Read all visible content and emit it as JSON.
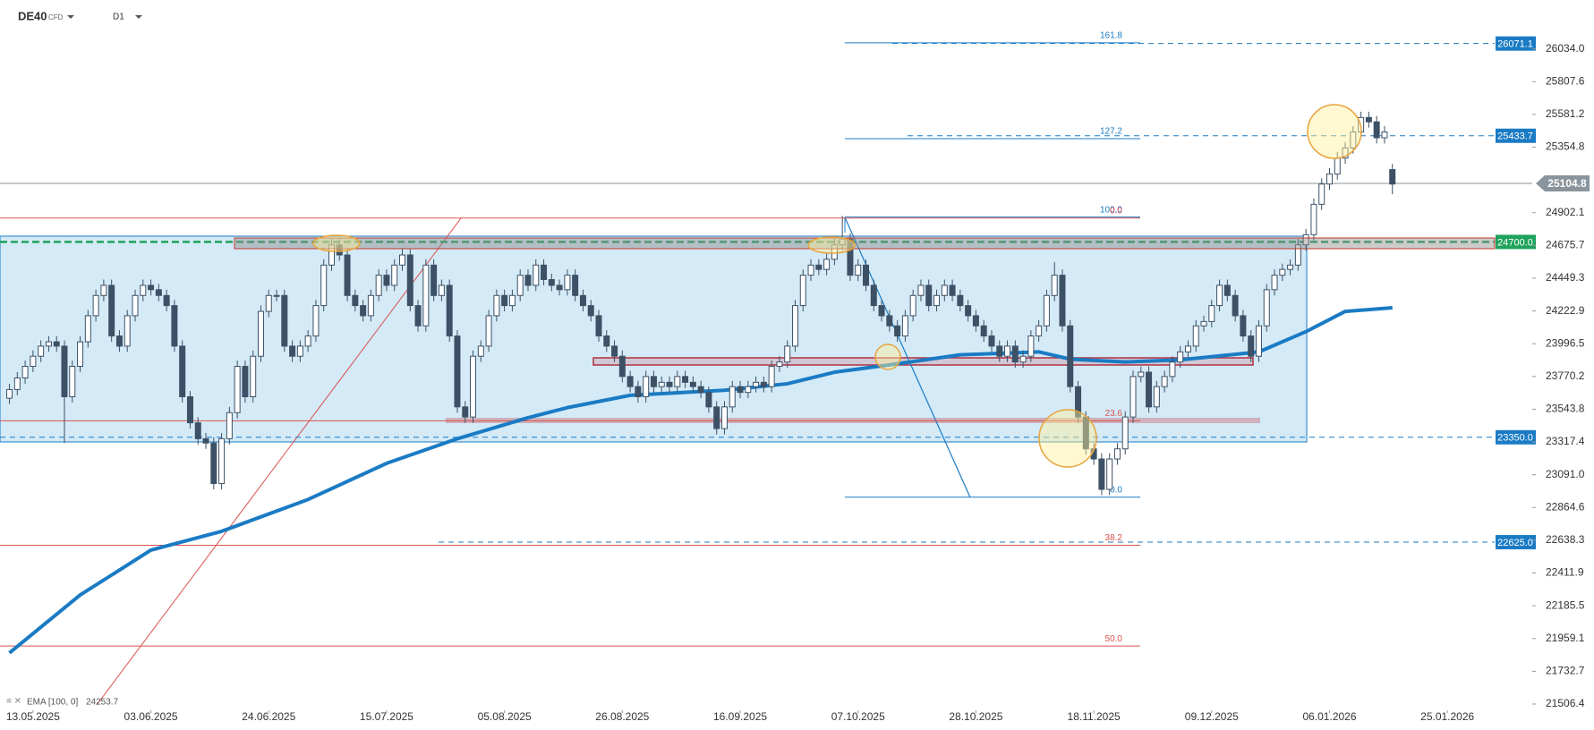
{
  "chart_data": {
    "type": "candlestick",
    "symbol": "DE40",
    "instrument": "CFD",
    "interval": "D1",
    "xlim": [
      -1.2,
      193.8
    ],
    "ylim": [
      21463,
      26372
    ],
    "xticks": [
      {
        "value": 3,
        "label": "13.05.2025"
      },
      {
        "value": 18,
        "label": "03.06.2025"
      },
      {
        "value": 33,
        "label": "24.06.2025"
      },
      {
        "value": 48,
        "label": "15.07.2025"
      },
      {
        "value": 63,
        "label": "05.08.2025"
      },
      {
        "value": 78,
        "label": "26.08.2025"
      },
      {
        "value": 93,
        "label": "16.09.2025"
      },
      {
        "value": 108,
        "label": "07.10.2025"
      },
      {
        "value": 123,
        "label": "28.10.2025"
      },
      {
        "value": 138,
        "label": "18.11.2025"
      },
      {
        "value": 153,
        "label": "09.12.2025"
      },
      {
        "value": 168,
        "label": "06.01.2026"
      },
      {
        "value": 183,
        "label": "25.01.2026"
      }
    ],
    "yticks": [
      21506.4,
      21732.7,
      21959.1,
      22185.5,
      22411.9,
      22638.3,
      22864.6,
      {
        "value": 23091.0,
        "label": "23091.0"
      },
      23317.4,
      23543.8,
      23770.2,
      23996.5,
      24222.9,
      24449.3,
      24675.7,
      24902.1,
      25354.8,
      25581.2,
      25807.6,
      {
        "value": 26034.0,
        "label": "26034.0"
      }
    ],
    "up_color": "#ffffff",
    "down_color": "#3d5166",
    "x": [
      0,
      1,
      2,
      3,
      4,
      5,
      6,
      7,
      8,
      9,
      10,
      11,
      12,
      13,
      14,
      15,
      16,
      17,
      18,
      19,
      20,
      21,
      22,
      23,
      24,
      25,
      26,
      27,
      28,
      29,
      30,
      31,
      32,
      33,
      34,
      35,
      36,
      37,
      38,
      39,
      40,
      41,
      42,
      43,
      44,
      45,
      46,
      47,
      48,
      49,
      50,
      51,
      52,
      53,
      54,
      55,
      56,
      57,
      58,
      59,
      60,
      61,
      62,
      63,
      64,
      65,
      66,
      67,
      68,
      69,
      70,
      71,
      72,
      73,
      74,
      75,
      76,
      77,
      78,
      79,
      80,
      81,
      82,
      83,
      84,
      85,
      86,
      87,
      88,
      89,
      90,
      91,
      92,
      93,
      94,
      95,
      96,
      97,
      98,
      99,
      100,
      101,
      102,
      103,
      104,
      105,
      106,
      107,
      108,
      109,
      110,
      111,
      112,
      113,
      114,
      115,
      116,
      117,
      118,
      119,
      120,
      121,
      122,
      123,
      124,
      125,
      126,
      127,
      128,
      129,
      130,
      131,
      132,
      133,
      134,
      135,
      136,
      137,
      138,
      139,
      140,
      141,
      142,
      143,
      144,
      145,
      146,
      147,
      148,
      149,
      150,
      151,
      152,
      153,
      154,
      155,
      156,
      157,
      158,
      159,
      160,
      161,
      162,
      163,
      164,
      165,
      166,
      167,
      168,
      169,
      170,
      171,
      172,
      173,
      174,
      175,
      176
    ],
    "open": [
      23620,
      23680,
      23760,
      23840,
      23910,
      23980,
      24010,
      23980,
      23630,
      23840,
      24010,
      24190,
      24330,
      24400,
      24050,
      23980,
      24190,
      24330,
      24400,
      24370,
      24330,
      24260,
      23980,
      23630,
      23450,
      23340,
      23310,
      23030,
      23340,
      23520,
      23840,
      23630,
      23910,
      24220,
      24330,
      24330,
      23980,
      23910,
      23980,
      24050,
      24260,
      24540,
      24680,
      24610,
      24330,
      24260,
      24190,
      24330,
      24470,
      24400,
      24540,
      24610,
      24260,
      24120,
      24540,
      24330,
      24400,
      24050,
      23560,
      23490,
      23910,
      23980,
      24190,
      24330,
      24260,
      24330,
      24470,
      24400,
      24540,
      24440,
      24400,
      24370,
      24470,
      24330,
      24260,
      24190,
      24050,
      23980,
      23910,
      23770,
      23700,
      23630,
      23770,
      23700,
      23730,
      23700,
      23770,
      23730,
      23700,
      23660,
      23560,
      23410,
      23560,
      23700,
      23660,
      23700,
      23730,
      23700,
      23840,
      23870,
      23980,
      24260,
      24470,
      24540,
      24510,
      24580,
      24680,
      24720,
      24470,
      24540,
      24400,
      24260,
      24190,
      24120,
      24050,
      24190,
      24330,
      24400,
      24260,
      24330,
      24400,
      24330,
      24260,
      24190,
      24120,
      24050,
      23980,
      23910,
      23980,
      23870,
      23910,
      24050,
      24120,
      24330,
      24470,
      24120,
      23700,
      23490,
      23270,
      23200,
      22990,
      23200,
      23270,
      23490,
      23770,
      23800,
      23560,
      23700,
      23770,
      23870,
      23940,
      23980,
      24120,
      24150,
      24260,
      24400,
      24330,
      24190,
      24050,
      23910,
      24120,
      24370,
      24470,
      24510,
      24540,
      24680,
      24750,
      24960,
      25100,
      25170,
      25280,
      25350,
      25460,
      25560,
      25530,
      25420,
      25200
    ],
    "high": [
      23720,
      23800,
      23880,
      23950,
      24020,
      24050,
      24050,
      24020,
      23880,
      24050,
      24230,
      24370,
      24440,
      24440,
      24090,
      24230,
      24370,
      24440,
      24440,
      24410,
      24370,
      24300,
      24020,
      23670,
      23490,
      23380,
      23350,
      23380,
      23560,
      23880,
      23880,
      23950,
      24260,
      24370,
      24370,
      24370,
      24020,
      24020,
      24090,
      24300,
      24580,
      24720,
      24720,
      24650,
      24370,
      24300,
      24370,
      24510,
      24510,
      24580,
      24650,
      24650,
      24300,
      24580,
      24580,
      24440,
      24440,
      24090,
      23600,
      23950,
      24020,
      24230,
      24370,
      24370,
      24370,
      24510,
      24510,
      24580,
      24580,
      24480,
      24440,
      24510,
      24510,
      24370,
      24300,
      24230,
      24090,
      24020,
      23950,
      23810,
      23740,
      23810,
      23810,
      23770,
      23770,
      23810,
      23810,
      23770,
      23740,
      23700,
      23600,
      23600,
      23740,
      23740,
      23740,
      23770,
      23770,
      23880,
      23910,
      24020,
      24300,
      24510,
      24580,
      24580,
      24620,
      24720,
      24880,
      24760,
      24580,
      24580,
      24440,
      24300,
      24230,
      24160,
      24230,
      24370,
      24440,
      24440,
      24370,
      24440,
      24440,
      24370,
      24300,
      24230,
      24160,
      24090,
      24020,
      24020,
      24020,
      23950,
      24090,
      24160,
      24370,
      24560,
      24510,
      24160,
      23740,
      23530,
      23310,
      23240,
      23240,
      23310,
      23530,
      23810,
      23840,
      23840,
      23740,
      23810,
      23910,
      23980,
      24020,
      24160,
      24190,
      24300,
      24440,
      24440,
      24370,
      24230,
      24090,
      24160,
      24410,
      24510,
      24550,
      24580,
      24720,
      24790,
      25000,
      25140,
      25210,
      25320,
      25390,
      25500,
      25600,
      25600,
      25570,
      25500,
      25240
    ],
    "low": [
      23580,
      23640,
      23720,
      23800,
      23870,
      23940,
      23940,
      23310,
      23590,
      23800,
      23970,
      24150,
      24290,
      24010,
      23940,
      23940,
      24150,
      24290,
      24330,
      24290,
      24220,
      23940,
      23590,
      23410,
      23300,
      23270,
      22990,
      22990,
      23300,
      23480,
      23590,
      23590,
      23870,
      24180,
      24290,
      23940,
      23870,
      23870,
      23940,
      24010,
      24220,
      24500,
      24570,
      24290,
      24220,
      24150,
      24150,
      24290,
      24360,
      24360,
      24500,
      24220,
      24080,
      24080,
      24290,
      24290,
      24010,
      23520,
      23450,
      23450,
      23870,
      23940,
      24150,
      24220,
      24220,
      24290,
      24360,
      24360,
      24400,
      24360,
      24330,
      24330,
      24290,
      24220,
      24150,
      24010,
      23940,
      23870,
      23730,
      23660,
      23590,
      23590,
      23660,
      23660,
      23660,
      23660,
      23690,
      23660,
      23620,
      23520,
      23370,
      23370,
      23520,
      23620,
      23620,
      23660,
      23660,
      23660,
      23800,
      23830,
      23940,
      24220,
      24430,
      24470,
      24470,
      24540,
      24640,
      24430,
      24430,
      24360,
      24220,
      24150,
      24080,
      24010,
      24010,
      24150,
      24290,
      24220,
      24220,
      24290,
      24290,
      24220,
      24150,
      24080,
      24010,
      23940,
      23870,
      23870,
      23830,
      23830,
      23870,
      24010,
      24080,
      24290,
      24080,
      23660,
      23450,
      23230,
      23160,
      22950,
      22950,
      23160,
      23230,
      23450,
      23730,
      23520,
      23520,
      23660,
      23730,
      23830,
      23900,
      23940,
      24080,
      24110,
      24220,
      24290,
      24150,
      24010,
      23870,
      23870,
      24080,
      24330,
      24430,
      24470,
      24500,
      24640,
      24710,
      24920,
      25060,
      25130,
      25240,
      25310,
      25420,
      25490,
      25380,
      25380,
      25030
    ],
    "close": [
      23680,
      23760,
      23840,
      23910,
      23980,
      24010,
      23980,
      23630,
      23840,
      24010,
      24190,
      24330,
      24400,
      24050,
      23980,
      24190,
      24330,
      24400,
      24370,
      24330,
      24260,
      23980,
      23630,
      23450,
      23340,
      23310,
      23030,
      23340,
      23520,
      23840,
      23630,
      23910,
      24220,
      24330,
      24330,
      23980,
      23910,
      23980,
      24050,
      24260,
      24540,
      24680,
      24610,
      24330,
      24260,
      24190,
      24330,
      24470,
      24400,
      24540,
      24610,
      24260,
      24120,
      24540,
      24330,
      24400,
      24050,
      23560,
      23490,
      23910,
      23980,
      24190,
      24330,
      24260,
      24330,
      24470,
      24400,
      24540,
      24440,
      24400,
      24370,
      24470,
      24330,
      24260,
      24190,
      24050,
      23980,
      23910,
      23770,
      23700,
      23630,
      23770,
      23700,
      23730,
      23700,
      23770,
      23730,
      23700,
      23660,
      23560,
      23410,
      23560,
      23700,
      23660,
      23700,
      23730,
      23700,
      23840,
      23870,
      23980,
      24260,
      24470,
      24540,
      24510,
      24580,
      24680,
      24720,
      24470,
      24540,
      24400,
      24260,
      24190,
      24120,
      24050,
      24190,
      24330,
      24400,
      24260,
      24330,
      24400,
      24330,
      24260,
      24190,
      24120,
      24050,
      23980,
      23910,
      23980,
      23870,
      23910,
      24050,
      24120,
      24330,
      24470,
      24120,
      23700,
      23490,
      23270,
      23200,
      22990,
      23200,
      23270,
      23490,
      23770,
      23800,
      23560,
      23700,
      23770,
      23870,
      23940,
      23980,
      24120,
      24150,
      24260,
      24400,
      24330,
      24190,
      24050,
      23910,
      24120,
      24370,
      24470,
      24510,
      24540,
      24680,
      24750,
      24960,
      25100,
      25170,
      25280,
      25350,
      25460,
      25560,
      25530,
      25420,
      25460,
      25100
    ],
    "ema": {
      "name": "EMA [100, 0]",
      "last_value": 24253.7,
      "color": "#1a7bc4",
      "x": [
        0,
        9,
        18,
        27,
        38,
        48,
        57,
        66,
        71,
        79,
        91,
        99,
        105,
        112,
        121,
        131,
        135,
        142,
        149,
        159,
        165,
        170,
        176
      ],
      "values": [
        21860,
        22260,
        22570,
        22700,
        22920,
        23170,
        23340,
        23485,
        23555,
        23640,
        23675,
        23720,
        23800,
        23850,
        23920,
        23940,
        23890,
        23870,
        23885,
        23940,
        24080,
        24220,
        24245
      ]
    },
    "levels": [
      {
        "value": 26071.1,
        "color": "#1a7bc4",
        "style": "dashed"
      },
      {
        "value": 25433.7,
        "color": "#1a7bc4",
        "style": "dashed"
      },
      {
        "value": 25104.8,
        "color": "#8a949c",
        "style": "solid"
      },
      {
        "value": 24700.0,
        "label": "24700.0",
        "color": "#1fa35c",
        "style": "dashed"
      },
      {
        "value": 23350.0,
        "label": "23350.0",
        "color": "#1a7bc4",
        "style": "dashed"
      },
      {
        "value": 22625.0,
        "label": "22625.0",
        "color": "#1a7bc4",
        "style": "dashed"
      }
    ],
    "fib_levels": [
      {
        "label": "161.8",
        "value": 26076,
        "color": "#1a7bc4"
      },
      {
        "label": "127.2",
        "value": 25414,
        "color": "#1a7bc4"
      },
      {
        "label": "100.0",
        "value": 24872,
        "color": "#1a7bc4"
      },
      {
        "label": "0.0",
        "value": 22936,
        "color": "#1a7bc4"
      },
      {
        "label": "0.0",
        "value": 24865,
        "color": "#d9534f"
      },
      {
        "label": "23.6",
        "value": 23464,
        "color": "#d9534f"
      },
      {
        "label": "38.2",
        "value": 22604,
        "color": "#d9534f"
      },
      {
        "label": "50.0",
        "value": 21907,
        "color": "#d9534f"
      }
    ]
  }
}
